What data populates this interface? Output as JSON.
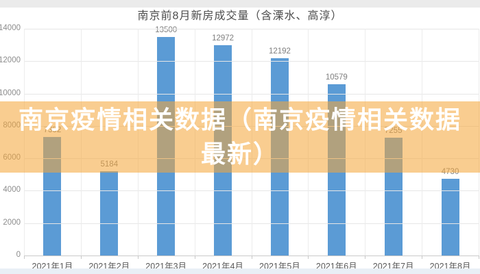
{
  "page": {
    "background": "#ffffff",
    "top_strip_color": "#ebebeb",
    "bottom_strip_color": "#e9eff6"
  },
  "chart_title": "南京前8月新房成交量（含溧水、高淳）",
  "banner": {
    "line1": "南京疫情相关数据（南京疫情相关数据",
    "line2": "最新）",
    "overlay_color": "rgba(244,166,57,0.56)",
    "text_color": "#ffffff"
  },
  "chart_data": {
    "type": "bar",
    "title": "南京前8月新房成交量（含溧水、高淳）",
    "categories": [
      "2021年1月",
      "2021年2月",
      "2021年3月",
      "2021年4月",
      "2021年5月",
      "2021年6月",
      "2021年7月",
      "2021年8月"
    ],
    "values": [
      7332,
      5184,
      13500,
      12972,
      12192,
      10579,
      7255,
      4730
    ],
    "value_labels": [
      "7332",
      "5184",
      "13500",
      "12972",
      "12192",
      "10579",
      "7255",
      "4730"
    ],
    "xlabel": "",
    "ylabel": "",
    "ylim": [
      0,
      14000
    ],
    "yticks": [
      0,
      2000,
      4000,
      6000,
      8000,
      10000,
      12000,
      14000
    ],
    "grid": true,
    "legend": false,
    "bar_color": "#5b9bd5",
    "value_label_color": "#7f7f7f",
    "note": "value labels of 2021年1月 and 2021年7月 are occluded by the overlay banner text; 2021年7月 shows faint leading digits 72"
  }
}
